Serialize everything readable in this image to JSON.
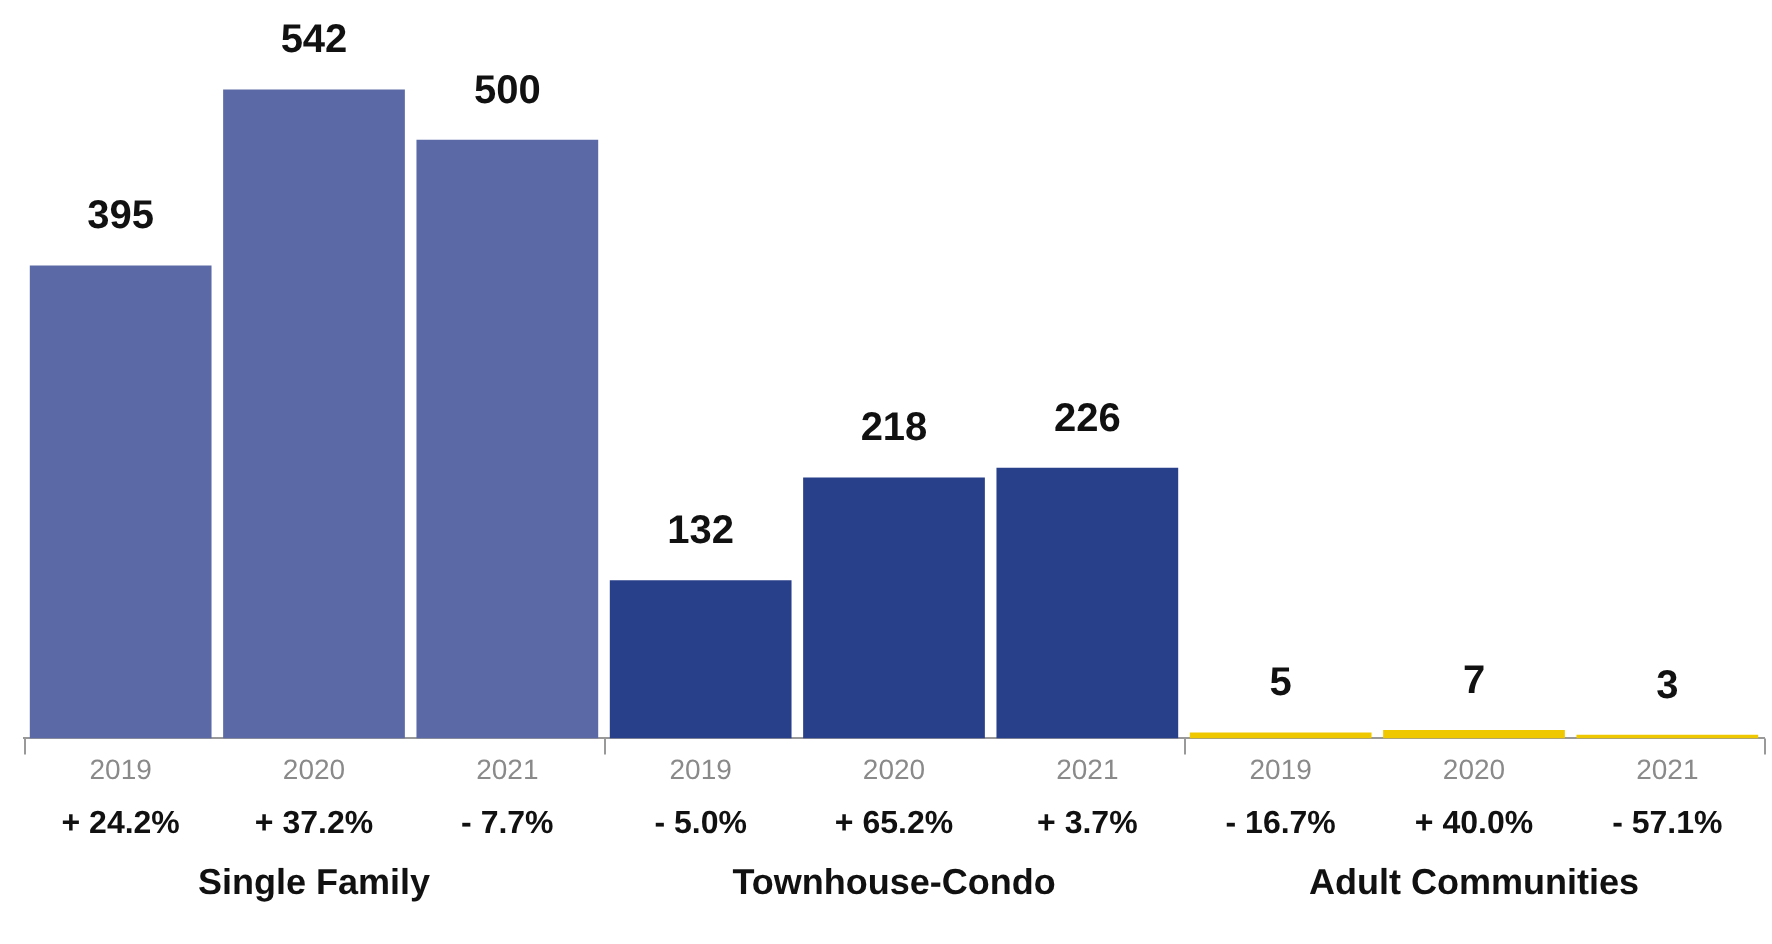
{
  "chart_data": {
    "type": "bar",
    "categories": [
      "2019",
      "2020",
      "2021",
      "2019",
      "2020",
      "2021",
      "2019",
      "2020",
      "2021"
    ],
    "values": [
      395,
      542,
      500,
      132,
      218,
      226,
      5,
      7,
      3
    ],
    "colors": [
      "#5b6aa6",
      "#5b6aa6",
      "#5b6aa6",
      "#283f8a",
      "#283f8a",
      "#283f8a",
      "#f0c800",
      "#f0c800",
      "#f0c800"
    ],
    "data_labels": true,
    "annotations": [
      "+ 24.2%",
      "+ 37.2%",
      "- 7.7%",
      "- 5.0%",
      "+ 65.2%",
      "+ 3.7%",
      "- 16.7%",
      "+ 40.0%",
      "- 57.1%",
      "Single Family",
      "Townhouse-Condo",
      "Adult Communities"
    ],
    "grid": false,
    "legend": false,
    "tick_labels": "x"
  }
}
